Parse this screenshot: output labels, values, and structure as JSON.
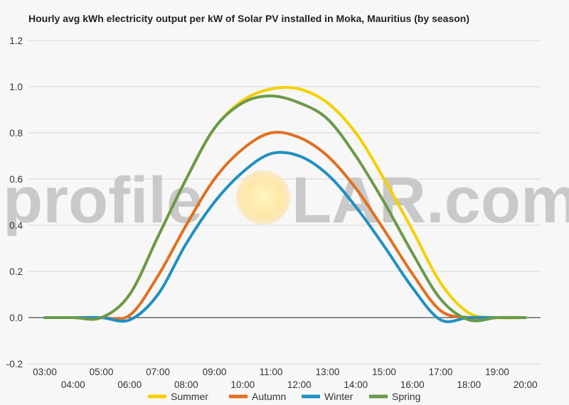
{
  "chart_data": {
    "type": "line",
    "title": "Hourly avg kWh electricity output per kW of Solar PV installed in Moka, Mauritius (by season)",
    "xlabel": "",
    "ylabel": "",
    "x": [
      "03:00",
      "04:00",
      "05:00",
      "06:00",
      "07:00",
      "08:00",
      "09:00",
      "10:00",
      "11:00",
      "12:00",
      "13:00",
      "14:00",
      "15:00",
      "16:00",
      "17:00",
      "18:00",
      "19:00",
      "20:00"
    ],
    "ylim": [
      -0.2,
      1.2
    ],
    "yticks": [
      "-0.2",
      "0.0",
      "0.2",
      "0.4",
      "0.6",
      "0.8",
      "1.0",
      "1.2"
    ],
    "grid": true,
    "legend_position": "bottom",
    "series": [
      {
        "name": "Summer",
        "color": "#f5d000",
        "values": [
          0.0,
          0.0,
          0.0,
          0.1,
          0.35,
          0.6,
          0.82,
          0.94,
          0.99,
          0.99,
          0.93,
          0.8,
          0.6,
          0.38,
          0.15,
          0.02,
          0.0,
          0.0
        ]
      },
      {
        "name": "Autumn",
        "color": "#e07020",
        "values": [
          0.0,
          0.0,
          0.0,
          0.01,
          0.18,
          0.4,
          0.6,
          0.73,
          0.8,
          0.78,
          0.7,
          0.56,
          0.38,
          0.19,
          0.03,
          0.0,
          0.0,
          0.0
        ]
      },
      {
        "name": "Winter",
        "color": "#2090c0",
        "values": [
          0.0,
          0.0,
          0.0,
          -0.01,
          0.1,
          0.32,
          0.5,
          0.63,
          0.71,
          0.7,
          0.62,
          0.48,
          0.31,
          0.13,
          -0.01,
          0.0,
          0.0,
          0.0
        ]
      },
      {
        "name": "Spring",
        "color": "#6a9a4a",
        "values": [
          0.0,
          0.0,
          0.0,
          0.1,
          0.35,
          0.6,
          0.82,
          0.93,
          0.96,
          0.93,
          0.86,
          0.7,
          0.5,
          0.28,
          0.08,
          -0.01,
          0.0,
          0.0
        ]
      }
    ]
  },
  "watermark": {
    "text_before": "profile",
    "text_after": "LAR.com"
  }
}
